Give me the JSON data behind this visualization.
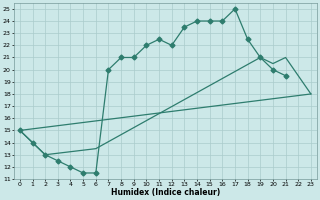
{
  "title": "",
  "xlabel": "Humidex (Indice chaleur)",
  "bg_color": "#cce8e8",
  "line_color": "#2e7d6e",
  "grid_color": "#aacccc",
  "xlim": [
    -0.5,
    23.5
  ],
  "ylim": [
    11,
    25.5
  ],
  "xticks": [
    0,
    1,
    2,
    3,
    4,
    5,
    6,
    7,
    8,
    9,
    10,
    11,
    12,
    13,
    14,
    15,
    16,
    17,
    18,
    19,
    20,
    21,
    22,
    23
  ],
  "yticks": [
    11,
    12,
    13,
    14,
    15,
    16,
    17,
    18,
    19,
    20,
    21,
    22,
    23,
    24,
    25
  ],
  "line1_x": [
    0,
    1,
    2,
    3,
    4,
    5,
    6,
    7,
    8,
    9,
    10,
    11,
    12,
    13,
    14,
    15,
    16,
    17,
    18,
    19,
    20,
    21
  ],
  "line1_y": [
    15.0,
    14.0,
    13.0,
    12.5,
    12.0,
    11.5,
    11.5,
    20.0,
    21.0,
    21.0,
    22.0,
    22.5,
    22.0,
    23.5,
    24.0,
    24.0,
    24.0,
    25.0,
    22.5,
    21.0,
    20.0,
    19.5
  ],
  "line2_x": [
    0,
    23
  ],
  "line2_y": [
    15.0,
    18.0
  ],
  "line3_x": [
    0,
    2,
    6,
    19,
    20,
    21,
    23
  ],
  "line3_y": [
    15.0,
    13.0,
    13.5,
    21.0,
    20.5,
    21.0,
    18.0
  ],
  "markersize": 2.5
}
